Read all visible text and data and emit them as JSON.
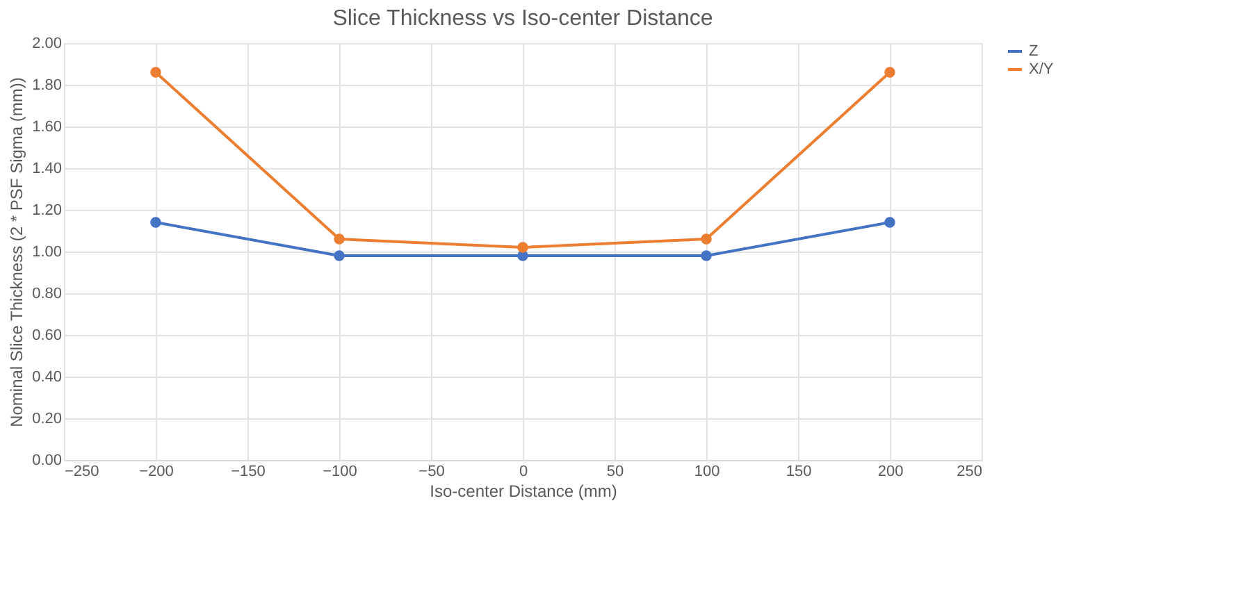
{
  "chart_data": {
    "type": "line",
    "title": "Slice Thickness vs Iso-center Distance",
    "xlabel": "Iso-center Distance (mm)",
    "ylabel": "Nominal Slice Thickness (2 * PSF Sigma (mm))",
    "x": [
      -200,
      -100,
      0,
      100,
      200
    ],
    "series": [
      {
        "name": "Z",
        "color": "#4472c4",
        "values": [
          1.14,
          0.98,
          0.98,
          0.98,
          1.14
        ]
      },
      {
        "name": "X/Y",
        "color": "#ed7d31",
        "values": [
          1.86,
          1.06,
          1.02,
          1.06,
          1.86
        ]
      }
    ],
    "xlim": [
      -250,
      250
    ],
    "xticks": [
      -250,
      -200,
      -150,
      -100,
      -50,
      0,
      50,
      100,
      150,
      200,
      250
    ],
    "ylim": [
      0,
      2
    ],
    "yticks": [
      {
        "value": 0,
        "label": "0.00"
      },
      {
        "value": 0.2,
        "label": "0.20"
      },
      {
        "value": 0.4,
        "label": "0.40"
      },
      {
        "value": 0.6,
        "label": "0.60"
      },
      {
        "value": 0.8,
        "label": "0.80"
      },
      {
        "value": 1.0,
        "label": "1.00"
      },
      {
        "value": 1.2,
        "label": "1.20"
      },
      {
        "value": 1.4,
        "label": "1.40"
      },
      {
        "value": 1.6,
        "label": "1.60"
      },
      {
        "value": 1.8,
        "label": "1.80"
      },
      {
        "value": 2.0,
        "label": "2.00"
      }
    ],
    "grid": true,
    "legend": "right",
    "marker": "circle",
    "line_style": "solid"
  }
}
